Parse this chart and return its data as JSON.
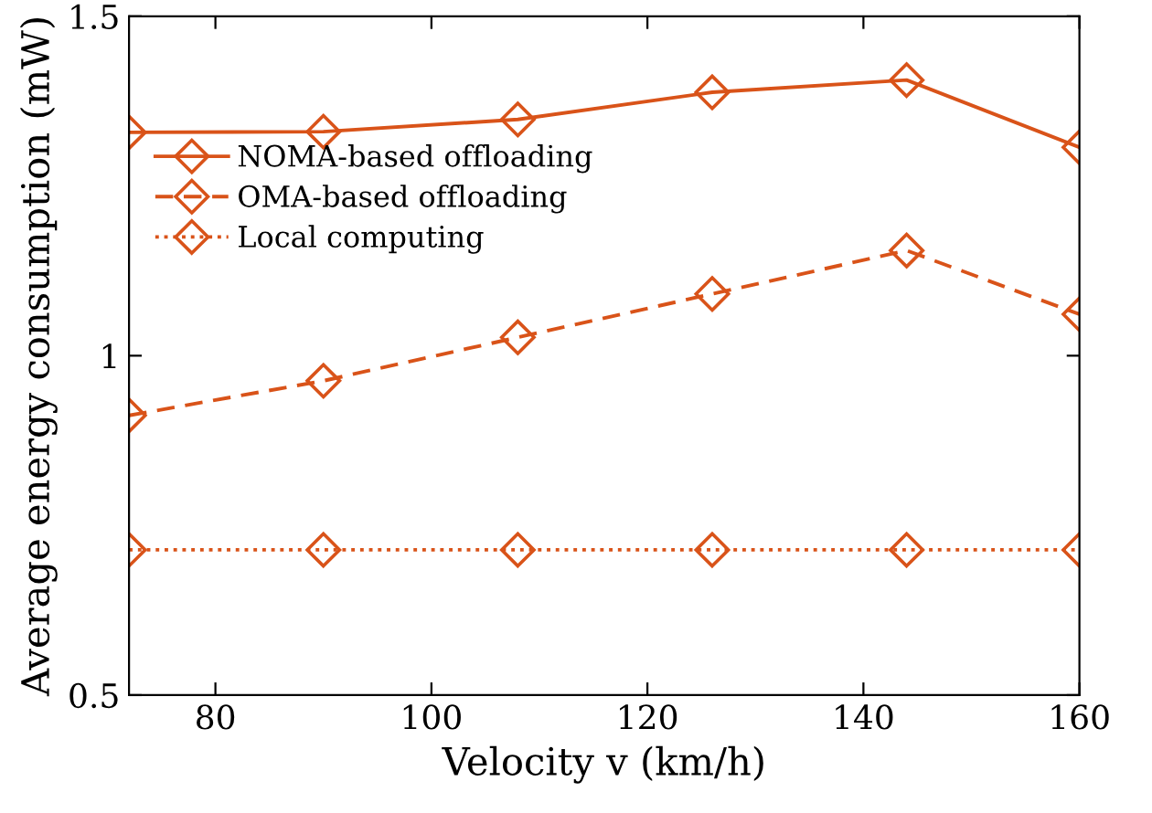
{
  "chart_data": {
    "type": "line",
    "xlabel": "Velocity v (km/h)",
    "ylabel": "Average energy consumption (mW)",
    "x": [
      72,
      90,
      108,
      126,
      144,
      160
    ],
    "series": [
      {
        "name": "NOMA-based offloading",
        "color": "#d95319",
        "line_style": "solid",
        "values": [
          1.329,
          1.33,
          1.348,
          1.388,
          1.406,
          1.307
        ]
      },
      {
        "name": "OMA-based offloading",
        "color": "#d95319",
        "line_style": "dashed",
        "values": [
          0.912,
          0.963,
          1.027,
          1.091,
          1.155,
          1.061
        ]
      },
      {
        "name": "Local computing",
        "color": "#d95319",
        "line_style": "dotted",
        "values": [
          0.714,
          0.714,
          0.714,
          0.714,
          0.714,
          0.714
        ]
      }
    ],
    "marker": "diamond",
    "xlim": [
      72,
      160
    ],
    "xticks": [
      80,
      100,
      120,
      140,
      160
    ],
    "ylim": [
      0.5,
      1.5
    ],
    "yticks": [
      0.5,
      1,
      1.5
    ],
    "grid": false,
    "legend": "top left"
  }
}
